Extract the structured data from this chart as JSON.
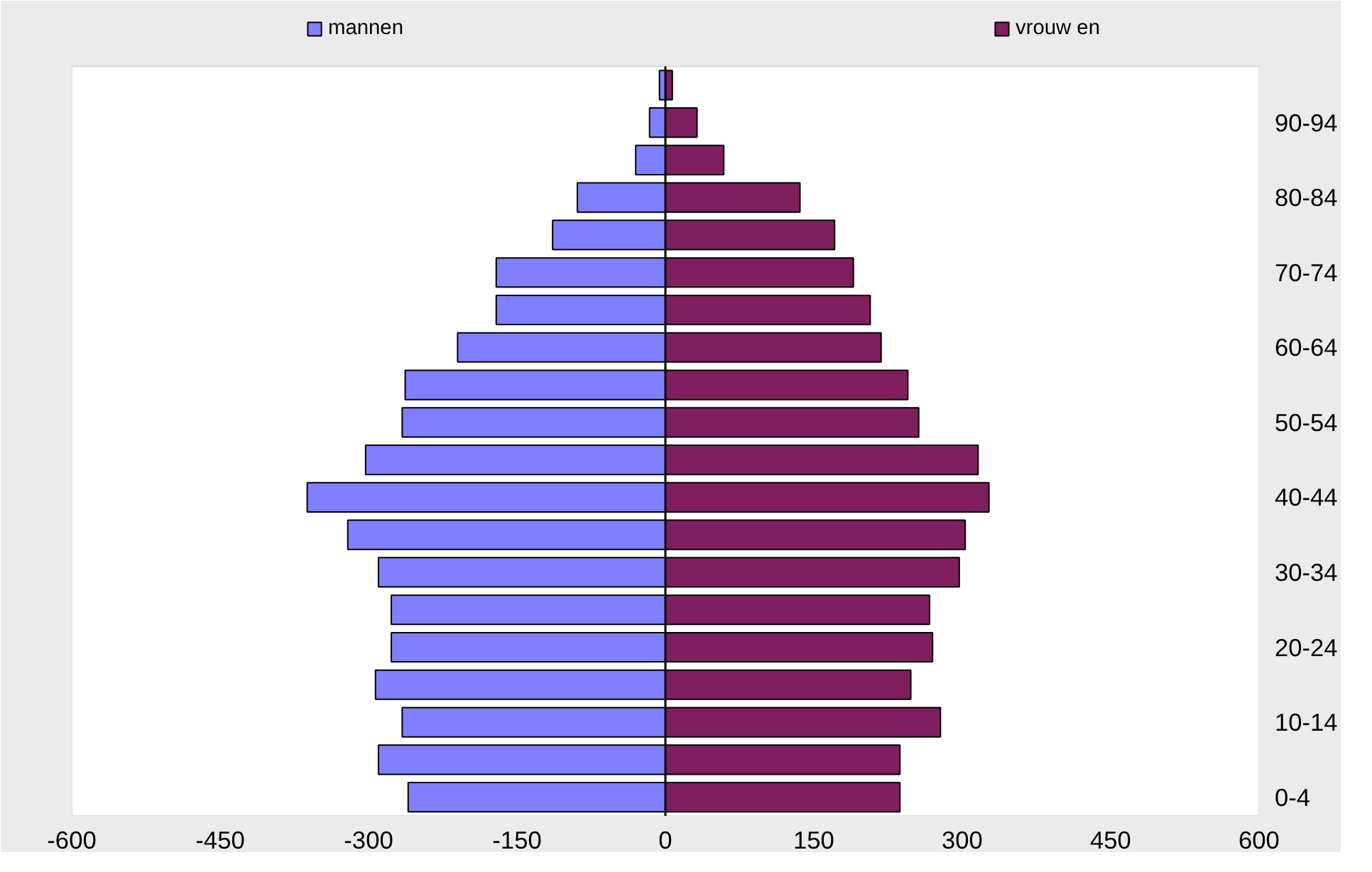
{
  "chart_data": {
    "type": "bar",
    "orientation": "horizontal",
    "categories": [
      null,
      "90-94",
      null,
      "80-84",
      null,
      "70-74",
      null,
      "60-64",
      null,
      "50-54",
      null,
      "40-44",
      null,
      "30-34",
      null,
      "20-24",
      null,
      "10-14",
      null,
      "0-4"
    ],
    "series": [
      {
        "name": "mannen",
        "color": "#8080ff",
        "values": [
          -6,
          -16,
          -30,
          -89,
          -114,
          -171,
          -171,
          -210,
          -263,
          -266,
          -303,
          -362,
          -321,
          -290,
          -277,
          -277,
          -293,
          -266,
          -290,
          -260
        ]
      },
      {
        "name": "vrouw en",
        "color": "#7f1f5f",
        "values": [
          7,
          32,
          59,
          136,
          171,
          190,
          207,
          218,
          245,
          256,
          316,
          327,
          303,
          297,
          267,
          270,
          248,
          278,
          237,
          237
        ]
      }
    ],
    "xlim": [
      -600,
      600
    ],
    "xticks": [
      -600,
      -450,
      -300,
      -150,
      0,
      150,
      300,
      450,
      600
    ],
    "stacked": true,
    "ref_lines": [
      {
        "axis": "x",
        "value": 0,
        "color": "#000000"
      }
    ],
    "grid": false,
    "legend": "top"
  }
}
